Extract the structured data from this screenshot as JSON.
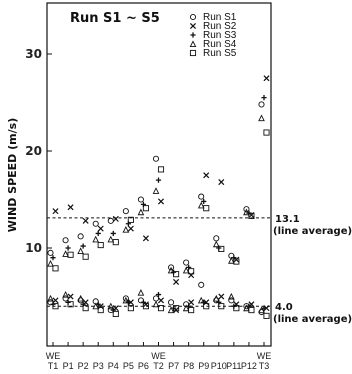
{
  "chart_data": {
    "type": "scatter",
    "title": "Run  S1 ~ S5",
    "ylabel": "WIND SPEED (m/s)",
    "xlabel": "",
    "ylim": [
      0,
      36
    ],
    "yticks": [
      10,
      20,
      30
    ],
    "grid": false,
    "legend_position": "top-right",
    "categories": [
      "T1",
      "P1",
      "P2",
      "P3",
      "P4",
      "P5",
      "P6",
      "T2",
      "P7",
      "P8",
      "P9",
      "P10",
      "P11",
      "P12",
      "T3"
    ],
    "category_headers": [
      {
        "category": "T1",
        "label": "WE"
      },
      {
        "category": "T2",
        "label": "WE"
      },
      {
        "category": "T3",
        "label": "WE"
      }
    ],
    "reference_lines": [
      {
        "value": 13.1,
        "label": "13.1",
        "sublabel": "(line average)"
      },
      {
        "value": 4.0,
        "label": "4.0",
        "sublabel": "(line average)"
      }
    ],
    "series": [
      {
        "name": "Run    S1",
        "marker": "circle",
        "values": [
          9.5,
          10.8,
          11.2,
          12.5,
          12.8,
          13.8,
          15.0,
          19.2,
          8.0,
          8.5,
          15.3,
          11.0,
          9.2,
          14.0,
          24.8
        ]
      },
      {
        "name": "Run    S2",
        "marker": "x",
        "values": [
          13.8,
          14.2,
          12.8,
          12.0,
          13.0,
          12.0,
          11.0,
          14.8,
          6.5,
          7.2,
          17.5,
          16.8,
          8.8,
          13.4,
          27.5
        ]
      },
      {
        "name": "Run    S3",
        "marker": "plus",
        "values": [
          9.0,
          10.0,
          10.2,
          11.5,
          11.5,
          12.5,
          14.5,
          17.0,
          7.5,
          8.0,
          14.8,
          10.0,
          9.0,
          13.6,
          25.5
        ]
      },
      {
        "name": "Run    S4",
        "marker": "triangle",
        "values": [
          8.5,
          9.5,
          9.8,
          11.0,
          11.0,
          12.0,
          13.8,
          16.0,
          7.8,
          7.8,
          14.5,
          10.5,
          8.8,
          13.8,
          23.5
        ]
      },
      {
        "name": "Run    S5",
        "marker": "square",
        "values": [
          7.8,
          9.2,
          9.0,
          10.2,
          10.5,
          12.8,
          14.0,
          18.0,
          7.2,
          7.5,
          14.0,
          9.8,
          8.5,
          13.2,
          21.8
        ]
      }
    ],
    "series_low": [
      {
        "name": "Run    S1",
        "values": [
          4.4,
          4.8,
          4.6,
          4.5,
          3.6,
          4.8,
          4.6,
          4.8,
          4.4,
          4.2,
          6.2,
          4.6,
          4.6,
          4.0,
          3.4
        ]
      },
      {
        "name": "Run    S2",
        "values": [
          4.6,
          5.0,
          4.4,
          4.0,
          3.8,
          4.4,
          4.2,
          4.6,
          3.6,
          4.4,
          4.4,
          5.0,
          4.2,
          4.2,
          3.8
        ]
      },
      {
        "name": "Run    S3",
        "values": [
          4.2,
          4.4,
          4.2,
          4.2,
          3.6,
          4.4,
          4.4,
          5.2,
          3.8,
          4.0,
          4.4,
          4.4,
          4.0,
          4.0,
          3.8
        ]
      },
      {
        "name": "Run    S4",
        "values": [
          4.8,
          5.2,
          4.8,
          4.0,
          4.0,
          4.6,
          5.4,
          4.2,
          3.6,
          3.8,
          4.6,
          4.8,
          5.0,
          3.8,
          3.6
        ]
      },
      {
        "name": "Run    S5",
        "values": [
          4.0,
          4.2,
          3.8,
          3.6,
          3.2,
          3.8,
          4.0,
          3.8,
          3.8,
          3.6,
          4.0,
          4.0,
          3.8,
          3.6,
          3.0
        ]
      }
    ]
  }
}
